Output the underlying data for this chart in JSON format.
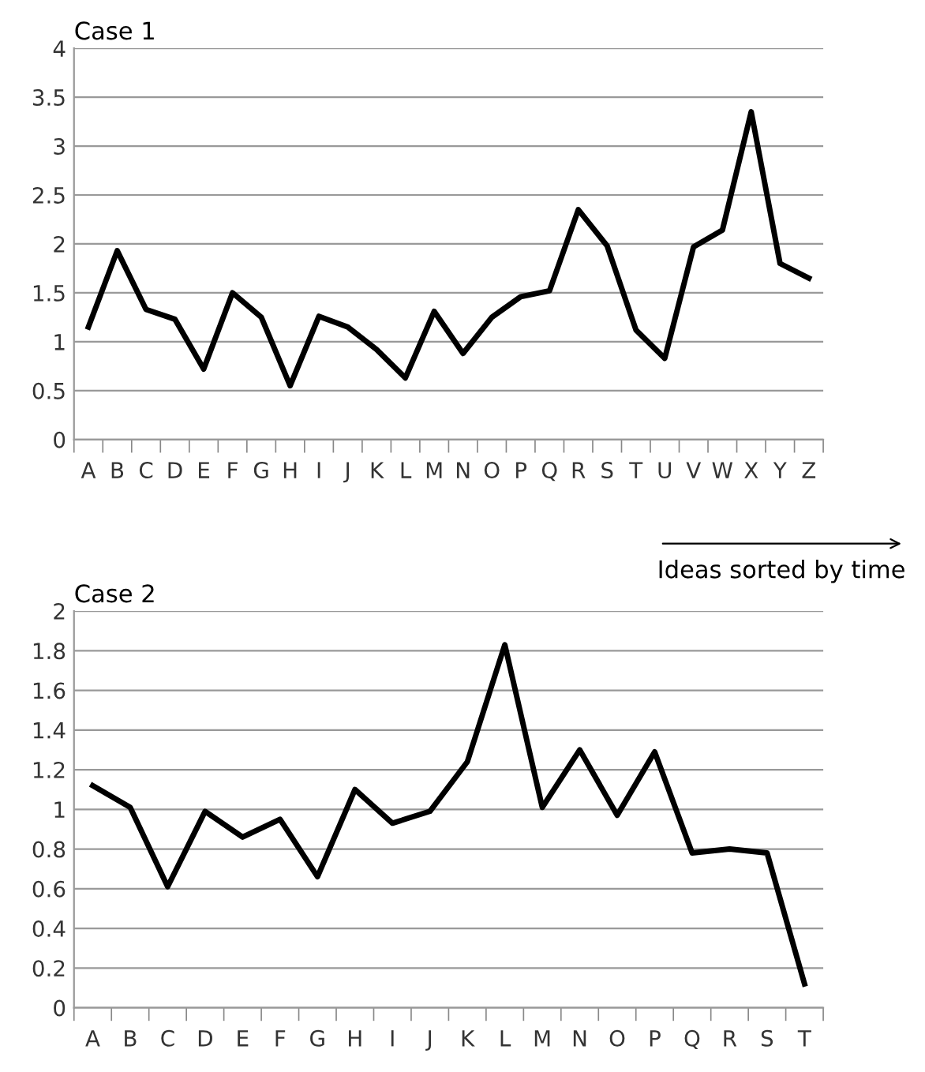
{
  "chart_data": [
    {
      "type": "line",
      "title": "Case 1",
      "categories": [
        "A",
        "B",
        "C",
        "D",
        "E",
        "F",
        "G",
        "H",
        "I",
        "J",
        "K",
        "L",
        "M",
        "N",
        "O",
        "P",
        "Q",
        "R",
        "S",
        "T",
        "U",
        "V",
        "W",
        "X",
        "Y",
        "Z"
      ],
      "series": [
        {
          "color": "#000000",
          "values": [
            1.15,
            1.93,
            1.33,
            1.23,
            0.72,
            1.5,
            1.25,
            0.55,
            1.26,
            1.15,
            0.92,
            0.63,
            1.31,
            0.88,
            1.25,
            1.46,
            1.52,
            2.35,
            1.98,
            1.12,
            0.83,
            1.97,
            2.14,
            3.35,
            1.8,
            1.65
          ]
        }
      ],
      "ylim": [
        0,
        4
      ],
      "yticks": [
        0,
        0.5,
        1,
        1.5,
        2,
        2.5,
        3,
        3.5,
        4
      ],
      "grid": "y",
      "legend": false,
      "marker": "none",
      "line_style": "solid"
    },
    {
      "type": "line",
      "title": "Case 2",
      "annotations": [
        "Ideas sorted by time"
      ],
      "categories": [
        "A",
        "B",
        "C",
        "D",
        "E",
        "F",
        "G",
        "H",
        "I",
        "J",
        "K",
        "L",
        "M",
        "N",
        "O",
        "P",
        "Q",
        "R",
        "S",
        "T"
      ],
      "series": [
        {
          "color": "#000000",
          "values": [
            1.12,
            1.01,
            0.61,
            0.99,
            0.86,
            0.95,
            0.66,
            1.1,
            0.93,
            0.99,
            1.24,
            1.83,
            1.01,
            1.3,
            0.97,
            1.29,
            0.78,
            0.8,
            0.78,
            0.12
          ]
        }
      ],
      "ylim": [
        0,
        2
      ],
      "yticks": [
        0,
        0.2,
        0.4,
        0.6,
        0.8,
        1,
        1.2,
        1.4,
        1.6,
        1.8,
        2
      ],
      "grid": "y",
      "legend": false,
      "marker": "none",
      "line_style": "solid"
    }
  ]
}
